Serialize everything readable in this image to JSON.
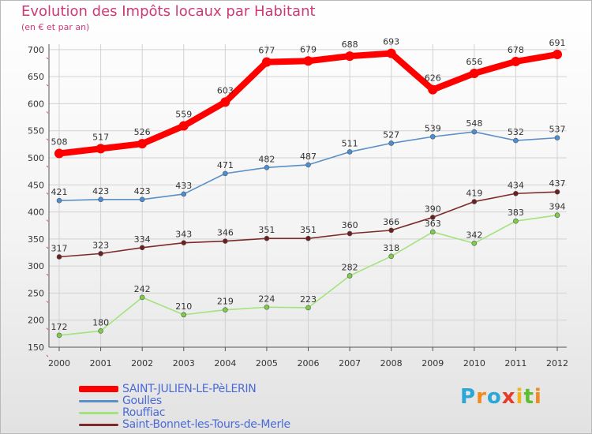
{
  "title": "Evolution des Impôts locaux par Habitant",
  "subtitle": "(en € et par an)",
  "brand": {
    "letters": [
      "P",
      "r",
      "o",
      "x",
      "i",
      "t",
      "i"
    ],
    "colors": [
      "#2aa7d6",
      "#f08a1d",
      "#2aa7d6",
      "#e63a2a",
      "#f0b21d",
      "#5cbf2f",
      "#f08a1d"
    ]
  },
  "legend": [
    {
      "label": "SAINT-JULIEN-LE-PèLERIN",
      "color": "#ff0000"
    },
    {
      "label": "Goulles",
      "color": "#5b8fc7"
    },
    {
      "label": "Rouffiac",
      "color": "#a3e37c"
    },
    {
      "label": "Saint-Bonnet-les-Tours-de-Merle",
      "color": "#7d2a2a"
    }
  ],
  "chart_data": {
    "type": "line",
    "title": "Evolution des Impôts locaux par Habitant",
    "ylabel": "(en € et par an)",
    "xlabel": "",
    "x": [
      2000,
      2001,
      2002,
      2003,
      2004,
      2005,
      2006,
      2007,
      2008,
      2009,
      2010,
      2011,
      2012
    ],
    "yticks": [
      150,
      200,
      250,
      300,
      350,
      400,
      450,
      500,
      550,
      600,
      650,
      700
    ],
    "ylim": [
      150,
      710
    ],
    "grid": true,
    "series": [
      {
        "name": "Saint-Bonnet-les-Tours-de-Merle",
        "color": "#7d2a2a",
        "marker": "#6b1f1f",
        "values": [
          317,
          323,
          334,
          343,
          346,
          351,
          351,
          360,
          366,
          390,
          419,
          434,
          437
        ]
      },
      {
        "name": "Rouffiac",
        "color": "#a3e37c",
        "marker": "#7dcc4a",
        "values": [
          172,
          180,
          242,
          210,
          219,
          224,
          223,
          282,
          318,
          363,
          342,
          383,
          394
        ]
      },
      {
        "name": "Goulles",
        "color": "#5b8fc7",
        "marker": "#4a8fd6",
        "values": [
          421,
          423,
          423,
          433,
          471,
          482,
          487,
          511,
          527,
          539,
          548,
          532,
          537
        ]
      },
      {
        "name": "SAINT-JULIEN-LE-PèLERIN",
        "color": "#ff0000",
        "marker": "#ff0000",
        "values": [
          508,
          517,
          526,
          559,
          603,
          677,
          679,
          688,
          693,
          626,
          656,
          678,
          691
        ]
      }
    ]
  }
}
